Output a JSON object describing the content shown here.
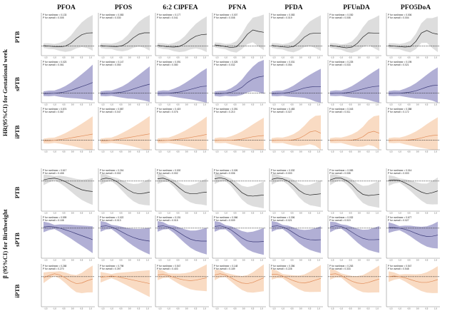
{
  "figure": {
    "y_axis_label_top": "HR(95%CI) for Gestational week",
    "y_axis_label_bottom": "β (95%CI) for Birthweight",
    "columns": [
      "PFOA",
      "PFOS",
      "6:2 ClPFEA",
      "PFNA",
      "PFDA",
      "PFUnDA",
      "PFO5DoA"
    ],
    "rows": [
      "PTB",
      "sPTB",
      "iPTB",
      "PTB",
      "sPTB",
      "iPTB"
    ]
  },
  "colors": {
    "PTB": {
      "band": "#d9d9d9",
      "line": "#222222"
    },
    "sPTB": {
      "band": "#a9a6d0",
      "line": "#3b3a78"
    },
    "iPTB": {
      "band": "#f8d7bd",
      "line": "#e08b57"
    }
  },
  "annotation_templates": {
    "nonlinear": "P for nonlinear = ",
    "overall": "P for overall = "
  },
  "chart_data": {
    "type": "line",
    "description_rows": [
      "PTB",
      "sPTB",
      "iPTB",
      "PTB",
      "sPTB",
      "iPTB"
    ],
    "outcomes": [
      "gestational_week",
      "gestational_week",
      "gestational_week",
      "birthweight",
      "birthweight",
      "birthweight"
    ],
    "panels": [
      [
        {
          "row": "PTB",
          "col": "PFOA",
          "p_nonlinear": "0.133",
          "p_overall": "0.005",
          "y": [
            1.02,
            1.0,
            0.98,
            0.97,
            1.0,
            1.12,
            1.32,
            1.48,
            1.55,
            1.56
          ]
        },
        {
          "row": "PTB",
          "col": "PFOS",
          "p_nonlinear": "0.083",
          "p_overall": "0.030",
          "y": [
            1.02,
            1.0,
            0.99,
            0.98,
            1.02,
            1.15,
            1.35,
            1.5,
            1.56,
            1.56
          ]
        },
        {
          "row": "PTB",
          "col": "6:2 ClPFEA",
          "p_nonlinear": "0.177",
          "p_overall": "0.041",
          "y": [
            1.03,
            1.0,
            0.97,
            0.96,
            0.99,
            1.1,
            1.28,
            1.42,
            1.48,
            1.5
          ]
        },
        {
          "row": "PTB",
          "col": "PFNA",
          "p_nonlinear": "0.007",
          "p_overall": "0.008",
          "y": [
            1.05,
            1.02,
            0.98,
            0.94,
            0.97,
            1.2,
            1.5,
            1.68,
            1.62,
            1.58
          ]
        },
        {
          "row": "PTB",
          "col": "PFDA",
          "p_nonlinear": "0.083",
          "p_overall": "0.019",
          "y": [
            1.03,
            1.0,
            0.97,
            0.95,
            0.98,
            1.15,
            1.38,
            1.52,
            1.55,
            1.55
          ]
        },
        {
          "row": "PTB",
          "col": "PFUnDA",
          "p_nonlinear": "0.030",
          "p_overall": "0.008",
          "y": [
            1.03,
            1.0,
            0.96,
            0.93,
            0.96,
            1.12,
            1.38,
            1.56,
            1.55,
            1.55
          ]
        },
        {
          "row": "PTB",
          "col": "PFO5DoA",
          "p_nonlinear": "0.006",
          "p_overall": "0.004",
          "y": [
            1.02,
            1.0,
            0.98,
            0.96,
            0.98,
            1.2,
            1.55,
            1.66,
            1.55,
            1.5
          ]
        }
      ],
      [
        {
          "row": "sPTB",
          "col": "PFOA",
          "p_nonlinear": "0.023",
          "p_overall": "0.061",
          "y": [
            0.98,
            0.99,
            1.0,
            1.02,
            1.06,
            1.12,
            1.2,
            1.28,
            1.36,
            1.45
          ]
        },
        {
          "row": "sPTB",
          "col": "PFOS",
          "p_nonlinear": "0.147",
          "p_overall": "0.050",
          "y": [
            0.98,
            0.99,
            1.0,
            1.02,
            1.05,
            1.1,
            1.18,
            1.25,
            1.32,
            1.38
          ]
        },
        {
          "row": "sPTB",
          "col": "6:2 ClPFEA",
          "p_nonlinear": "0.091",
          "p_overall": "0.080",
          "y": [
            0.99,
            1.0,
            1.0,
            1.02,
            1.05,
            1.1,
            1.16,
            1.22,
            1.28,
            1.3
          ]
        },
        {
          "row": "sPTB",
          "col": "PFNA",
          "p_nonlinear": "0.025",
          "p_overall": "0.032",
          "y": [
            0.98,
            0.98,
            1.0,
            1.04,
            1.12,
            1.25,
            1.45,
            1.6,
            1.68,
            1.72
          ]
        },
        {
          "row": "sPTB",
          "col": "PFDA",
          "p_nonlinear": "0.031",
          "p_overall": "0.054",
          "y": [
            0.98,
            0.99,
            1.0,
            1.03,
            1.08,
            1.15,
            1.22,
            1.26,
            1.28,
            1.28
          ]
        },
        {
          "row": "sPTB",
          "col": "PFUnDA",
          "p_nonlinear": "0.225",
          "p_overall": "0.033",
          "y": [
            0.99,
            1.0,
            1.0,
            1.02,
            1.06,
            1.12,
            1.18,
            1.24,
            1.28,
            1.3
          ]
        },
        {
          "row": "sPTB",
          "col": "PFO5DoA",
          "p_nonlinear": "0.195",
          "p_overall": "0.021",
          "y": [
            0.99,
            1.0,
            1.0,
            1.02,
            1.05,
            1.1,
            1.18,
            1.26,
            1.32,
            1.34
          ]
        }
      ],
      [
        {
          "row": "iPTB",
          "col": "PFOA",
          "p_nonlinear": "0.874",
          "p_overall": "0.067",
          "y": [
            0.97,
            0.98,
            1.0,
            1.03,
            1.06,
            1.1,
            1.14,
            1.18,
            1.22,
            1.26
          ]
        },
        {
          "row": "iPTB",
          "col": "PFOS",
          "p_nonlinear": "0.587",
          "p_overall": "0.047",
          "y": [
            0.97,
            0.98,
            1.0,
            1.03,
            1.07,
            1.11,
            1.15,
            1.19,
            1.23,
            1.27
          ]
        },
        {
          "row": "iPTB",
          "col": "6:2 ClPFEA",
          "p_nonlinear": "0.419",
          "p_overall": "0.076",
          "y": [
            0.98,
            0.99,
            1.0,
            1.02,
            1.05,
            1.08,
            1.12,
            1.16,
            1.2,
            1.25
          ]
        },
        {
          "row": "iPTB",
          "col": "PFNA",
          "p_nonlinear": "0.391",
          "p_overall": "0.210",
          "y": [
            0.99,
            1.0,
            1.0,
            1.0,
            1.02,
            1.05,
            1.1,
            1.15,
            1.18,
            1.2
          ]
        },
        {
          "row": "iPTB",
          "col": "PFDA",
          "p_nonlinear": "0.483",
          "p_overall": "0.027",
          "y": [
            0.99,
            1.0,
            1.0,
            1.0,
            1.02,
            1.08,
            1.2,
            1.35,
            1.4,
            1.3
          ]
        },
        {
          "row": "iPTB",
          "col": "PFUnDA",
          "p_nonlinear": "0.043",
          "p_overall": "0.011",
          "y": [
            0.99,
            1.0,
            1.0,
            1.0,
            1.01,
            1.05,
            1.15,
            1.32,
            1.38,
            1.3
          ]
        },
        {
          "row": "iPTB",
          "col": "PFO5DoA",
          "p_nonlinear": "0.388",
          "p_overall": "0.172",
          "y": [
            0.99,
            1.0,
            1.0,
            1.0,
            1.02,
            1.05,
            1.1,
            1.16,
            1.2,
            1.22
          ]
        }
      ],
      [
        {
          "row": "PTB",
          "col": "PFOA",
          "p_nonlinear": "0.617",
          "p_overall": "0.408",
          "y": [
            10,
            20,
            25,
            15,
            -5,
            -30,
            -55,
            -75,
            -85,
            -90
          ]
        },
        {
          "row": "PTB",
          "col": "PFOS",
          "p_nonlinear": "0.216",
          "p_overall": "0.002",
          "y": [
            15,
            25,
            18,
            -5,
            -40,
            -75,
            -100,
            -110,
            -105,
            -95
          ]
        },
        {
          "row": "PTB",
          "col": "6:2 ClPFEA",
          "p_nonlinear": "0.002",
          "p_overall": "0.002",
          "y": [
            20,
            25,
            10,
            -20,
            -60,
            -95,
            -110,
            -110,
            -100,
            -95
          ]
        },
        {
          "row": "PTB",
          "col": "PFNA",
          "p_nonlinear": "0.026",
          "p_overall": "0.006",
          "y": [
            20,
            28,
            18,
            -10,
            -55,
            -100,
            -125,
            -130,
            -125,
            -120
          ]
        },
        {
          "row": "PTB",
          "col": "PFDA",
          "p_nonlinear": "0.032",
          "p_overall": "0.003",
          "y": [
            15,
            25,
            20,
            0,
            -35,
            -80,
            -110,
            -120,
            -115,
            -110
          ]
        },
        {
          "row": "PTB",
          "col": "PFUnDA",
          "p_nonlinear": "0.083",
          "p_overall": "0.008",
          "y": [
            10,
            25,
            25,
            5,
            -30,
            -80,
            -115,
            -125,
            -120,
            -115
          ]
        },
        {
          "row": "PTB",
          "col": "PFO5DoA",
          "p_nonlinear": "0.014",
          "p_overall": "0.003",
          "y": [
            5,
            10,
            5,
            -15,
            -40,
            -70,
            -95,
            -110,
            -100,
            -85
          ]
        }
      ],
      [
        {
          "row": "sPTB",
          "col": "PFOA",
          "p_nonlinear": "0.599",
          "p_overall": "0.108",
          "y": [
            10,
            15,
            10,
            0,
            -15,
            -30,
            -48,
            -65,
            -82,
            -100
          ]
        },
        {
          "row": "sPTB",
          "col": "PFOS",
          "p_nonlinear": "0.022",
          "p_overall": "0.013",
          "y": [
            15,
            20,
            10,
            -10,
            -35,
            -60,
            -80,
            -95,
            -105,
            -112
          ]
        },
        {
          "row": "sPTB",
          "col": "6:2 ClPFEA",
          "p_nonlinear": "0.151",
          "p_overall": "0.015",
          "y": [
            15,
            20,
            10,
            -10,
            -40,
            -70,
            -95,
            -108,
            -112,
            -112
          ]
        },
        {
          "row": "sPTB",
          "col": "PFNA",
          "p_nonlinear": "0.066",
          "p_overall": "0.009",
          "y": [
            15,
            20,
            8,
            -15,
            -50,
            -85,
            -110,
            -118,
            -118,
            -115
          ]
        },
        {
          "row": "sPTB",
          "col": "PFDA",
          "p_nonlinear": "0.306",
          "p_overall": "0.021",
          "y": [
            15,
            20,
            10,
            -10,
            -40,
            -70,
            -90,
            -100,
            -102,
            -100
          ]
        },
        {
          "row": "sPTB",
          "col": "PFUnDA",
          "p_nonlinear": "0.032",
          "p_overall": "0.019",
          "y": [
            10,
            20,
            15,
            -5,
            -35,
            -65,
            -88,
            -100,
            -100,
            -98
          ]
        },
        {
          "row": "sPTB",
          "col": "PFO5DoA",
          "p_nonlinear": "0.677",
          "p_overall": "0.027",
          "y": [
            5,
            5,
            0,
            -10,
            -25,
            -45,
            -62,
            -72,
            -70,
            -60
          ]
        }
      ],
      [
        {
          "row": "iPTB",
          "col": "PFOA",
          "p_nonlinear": "0.268",
          "p_overall": "0.270",
          "y": [
            -10,
            10,
            25,
            15,
            -10,
            -40,
            -60,
            -55,
            -35,
            -20
          ]
        },
        {
          "row": "iPTB",
          "col": "PFOS",
          "p_nonlinear": "0.798",
          "p_overall": "0.397",
          "y": [
            -5,
            0,
            5,
            0,
            -10,
            -20,
            -30,
            -40,
            -50,
            -60
          ]
        },
        {
          "row": "iPTB",
          "col": "6:2 ClPFEA",
          "p_nonlinear": "0.547",
          "p_overall": "0.403",
          "y": [
            15,
            20,
            10,
            -5,
            -20,
            -30,
            -35,
            -30,
            -20,
            -10
          ]
        },
        {
          "row": "iPTB",
          "col": "PFNA",
          "p_nonlinear": "0.148",
          "p_overall": "0.189",
          "y": [
            15,
            25,
            15,
            -10,
            -35,
            -55,
            -60,
            -50,
            -30,
            -10
          ]
        },
        {
          "row": "iPTB",
          "col": "PFDA",
          "p_nonlinear": "0.356",
          "p_overall": "0.228",
          "y": [
            20,
            20,
            5,
            -15,
            -35,
            -50,
            -55,
            -45,
            -30,
            -15
          ]
        },
        {
          "row": "iPTB",
          "col": "PFUnDA",
          "p_nonlinear": "0.263",
          "p_overall": "0.333",
          "y": [
            20,
            25,
            10,
            -15,
            -40,
            -55,
            -60,
            -50,
            -35,
            -20
          ]
        },
        {
          "row": "iPTB",
          "col": "PFO5DoA",
          "p_nonlinear": "0.547",
          "p_overall": "0.548",
          "y": [
            0,
            5,
            0,
            -10,
            -25,
            -40,
            -50,
            -50,
            -40,
            -25
          ]
        }
      ]
    ],
    "x_ticks": [
      "-1.5",
      "-1.0",
      "-0.5",
      "0.0",
      "0.5",
      "1.0"
    ],
    "reference_line_hr": 1,
    "reference_line_beta": 0
  }
}
